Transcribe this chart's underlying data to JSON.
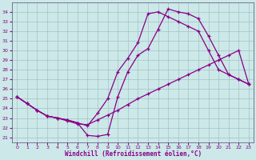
{
  "xlabel": "Windchill (Refroidissement éolien,°C)",
  "xlim": [
    -0.5,
    23.5
  ],
  "ylim": [
    20.5,
    35.0
  ],
  "yticks": [
    21,
    22,
    23,
    24,
    25,
    26,
    27,
    28,
    29,
    30,
    31,
    32,
    33,
    34
  ],
  "xticks": [
    0,
    1,
    2,
    3,
    4,
    5,
    6,
    7,
    8,
    9,
    10,
    11,
    12,
    13,
    14,
    15,
    16,
    17,
    18,
    19,
    20,
    21,
    22,
    23
  ],
  "color": "#880088",
  "bg_color": "#cce8e8",
  "line1_x": [
    0,
    1,
    2,
    3,
    4,
    5,
    6,
    7,
    8,
    9,
    10,
    11,
    12,
    13,
    14,
    15,
    16,
    17,
    18,
    19,
    20,
    21,
    22,
    23
  ],
  "line1_y": [
    25.2,
    24.5,
    23.8,
    23.2,
    23.0,
    22.8,
    22.5,
    21.2,
    21.1,
    21.3,
    25.2,
    27.8,
    29.5,
    30.2,
    32.2,
    34.3,
    34.0,
    33.8,
    33.3,
    31.5,
    29.5,
    27.5,
    27.0,
    26.5
  ],
  "line2_x": [
    0,
    1,
    2,
    3,
    4,
    5,
    6,
    7,
    8,
    9,
    10,
    11,
    12,
    13,
    14,
    15,
    16,
    17,
    18,
    19,
    20,
    21,
    22,
    23
  ],
  "line2_y": [
    25.2,
    24.5,
    23.8,
    23.2,
    23.0,
    22.8,
    22.5,
    22.2,
    23.5,
    25.0,
    27.8,
    29.2,
    30.8,
    33.8,
    34.0,
    33.5,
    33.0,
    32.5,
    32.0,
    30.0,
    28.0,
    27.5,
    27.0,
    26.5
  ],
  "line3_x": [
    0,
    1,
    2,
    3,
    4,
    5,
    6,
    7,
    8,
    9,
    10,
    11,
    12,
    13,
    14,
    15,
    16,
    17,
    18,
    19,
    20,
    21,
    22,
    23
  ],
  "line3_y": [
    25.2,
    24.5,
    23.8,
    23.2,
    23.0,
    22.7,
    22.4,
    22.3,
    22.8,
    23.3,
    23.8,
    24.4,
    25.0,
    25.5,
    26.0,
    26.5,
    27.0,
    27.5,
    28.0,
    28.5,
    29.0,
    29.5,
    30.0,
    26.5
  ]
}
